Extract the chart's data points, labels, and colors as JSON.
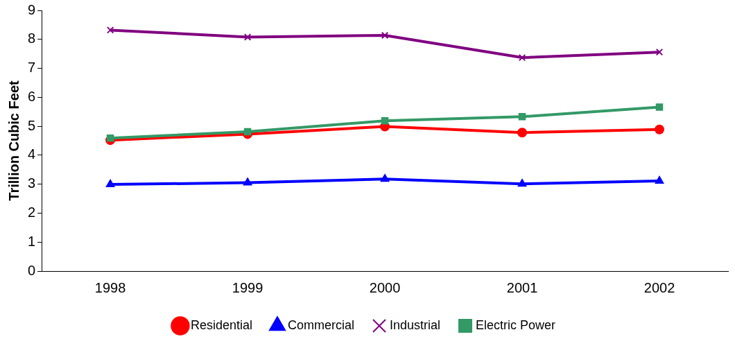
{
  "chart_data": {
    "type": "line",
    "ylabel": "Trillion Cubic Feet",
    "categories": [
      "1998",
      "1999",
      "2000",
      "2001",
      "2002"
    ],
    "series": [
      {
        "name": "Residential",
        "color": "#ff0000",
        "marker": "circle",
        "values": [
          4.52,
          4.73,
          4.99,
          4.78,
          4.89
        ]
      },
      {
        "name": "Commercial",
        "color": "#0000ff",
        "marker": "triangle",
        "values": [
          2.99,
          3.05,
          3.18,
          3.01,
          3.11
        ]
      },
      {
        "name": "Industrial",
        "color": "#800080",
        "marker": "cross",
        "values": [
          8.32,
          8.08,
          8.14,
          7.37,
          7.56
        ]
      },
      {
        "name": "Electric Power",
        "color": "#339966",
        "marker": "square",
        "values": [
          4.59,
          4.81,
          5.19,
          5.33,
          5.66
        ]
      }
    ],
    "ylim": [
      0,
      9
    ],
    "yticks": [
      0,
      1,
      2,
      3,
      4,
      5,
      6,
      7,
      8,
      9
    ],
    "grid": false,
    "legend": "bottom"
  }
}
